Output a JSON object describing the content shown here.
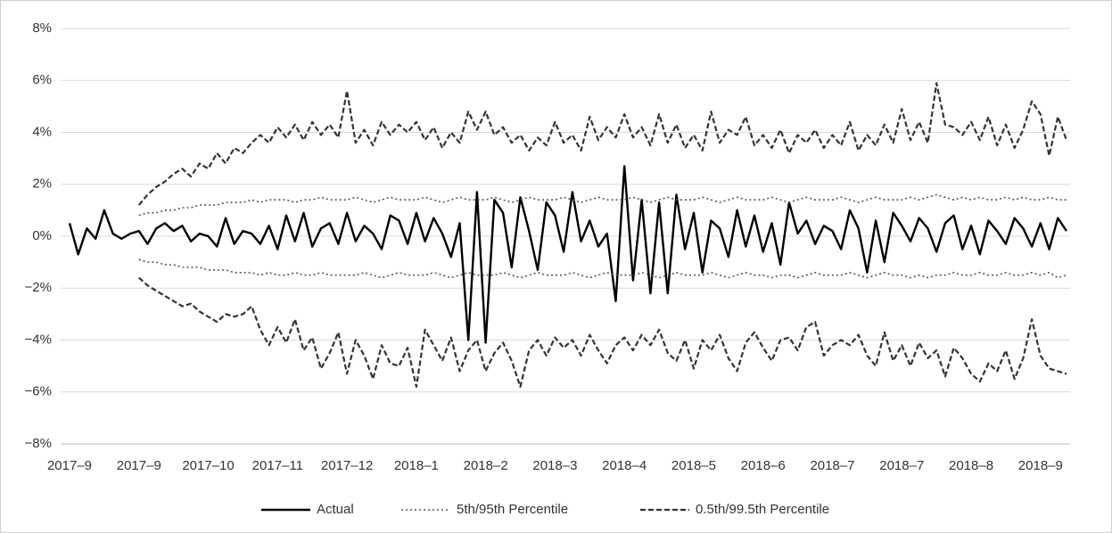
{
  "chart_data": {
    "type": "line",
    "categories": [
      "2017–9",
      null,
      null,
      null,
      null,
      null,
      null,
      null,
      "2017–9",
      null,
      null,
      null,
      null,
      null,
      null,
      null,
      "2017–10",
      null,
      null,
      null,
      null,
      null,
      null,
      null,
      "2017–11",
      null,
      null,
      null,
      null,
      null,
      null,
      null,
      "2017–12",
      null,
      null,
      null,
      null,
      null,
      null,
      null,
      "2018–1",
      null,
      null,
      null,
      null,
      null,
      null,
      null,
      "2018–2",
      null,
      null,
      null,
      null,
      null,
      null,
      null,
      "2018–3",
      null,
      null,
      null,
      null,
      null,
      null,
      null,
      "2018–4",
      null,
      null,
      null,
      null,
      null,
      null,
      null,
      "2018–5",
      null,
      null,
      null,
      null,
      null,
      null,
      null,
      "2018–6",
      null,
      null,
      null,
      null,
      null,
      null,
      null,
      "2018–7",
      null,
      null,
      null,
      null,
      null,
      null,
      null,
      "2018–7",
      null,
      null,
      null,
      null,
      null,
      null,
      null,
      "2018–8",
      null,
      null,
      null,
      null,
      null,
      null,
      null,
      "2018–9",
      null,
      null,
      null
    ],
    "series": [
      {
        "name": "Actual",
        "color": "#000000",
        "dash": "solid",
        "values": [
          0.5,
          -0.7,
          0.3,
          -0.1,
          1.0,
          0.1,
          -0.1,
          0.1,
          0.2,
          -0.3,
          0.3,
          0.5,
          0.2,
          0.4,
          -0.2,
          0.1,
          0.0,
          -0.4,
          0.7,
          -0.3,
          0.2,
          0.1,
          -0.3,
          0.4,
          -0.5,
          0.8,
          -0.2,
          0.9,
          -0.4,
          0.3,
          0.5,
          -0.3,
          0.9,
          -0.2,
          0.4,
          0.1,
          -0.5,
          0.8,
          0.6,
          -0.3,
          0.9,
          -0.2,
          0.7,
          0.1,
          -0.8,
          0.5,
          -4.0,
          1.7,
          -4.1,
          1.4,
          0.9,
          -1.2,
          1.5,
          0.2,
          -1.3,
          1.3,
          0.8,
          -0.6,
          1.7,
          -0.2,
          0.6,
          -0.4,
          0.1,
          -2.5,
          2.7,
          -1.7,
          1.4,
          -2.2,
          1.3,
          -2.2,
          1.6,
          -0.5,
          0.9,
          -1.4,
          0.6,
          0.3,
          -0.8,
          1.0,
          -0.4,
          0.8,
          -0.6,
          0.5,
          -1.1,
          1.3,
          0.1,
          0.6,
          -0.3,
          0.4,
          0.2,
          -0.5,
          1.0,
          0.3,
          -1.4,
          0.6,
          -1.0,
          0.9,
          0.4,
          -0.2,
          0.7,
          0.3,
          -0.6,
          0.5,
          0.8,
          -0.5,
          0.4,
          -0.7,
          0.6,
          0.2,
          -0.3,
          0.7,
          0.3,
          -0.4,
          0.5,
          -0.5,
          0.7,
          0.2
        ]
      },
      {
        "name": "5th/95th Percentile",
        "color": "#555555",
        "dash": "dotted",
        "upper": [
          null,
          null,
          null,
          null,
          null,
          null,
          null,
          null,
          0.8,
          0.9,
          0.9,
          1.0,
          1.0,
          1.1,
          1.1,
          1.2,
          1.2,
          1.2,
          1.3,
          1.3,
          1.3,
          1.4,
          1.3,
          1.4,
          1.4,
          1.4,
          1.3,
          1.4,
          1.4,
          1.5,
          1.4,
          1.4,
          1.4,
          1.5,
          1.4,
          1.3,
          1.4,
          1.5,
          1.4,
          1.4,
          1.4,
          1.5,
          1.4,
          1.3,
          1.4,
          1.5,
          1.4,
          1.4,
          1.4,
          1.5,
          1.4,
          1.3,
          1.4,
          1.5,
          1.4,
          1.4,
          1.4,
          1.5,
          1.4,
          1.3,
          1.4,
          1.5,
          1.4,
          1.4,
          1.4,
          1.5,
          1.4,
          1.3,
          1.4,
          1.5,
          1.4,
          1.4,
          1.4,
          1.5,
          1.4,
          1.3,
          1.4,
          1.5,
          1.4,
          1.4,
          1.4,
          1.5,
          1.4,
          1.3,
          1.4,
          1.5,
          1.4,
          1.4,
          1.4,
          1.5,
          1.4,
          1.3,
          1.4,
          1.5,
          1.4,
          1.4,
          1.4,
          1.5,
          1.4,
          1.5,
          1.6,
          1.5,
          1.4,
          1.5,
          1.4,
          1.5,
          1.4,
          1.4,
          1.5,
          1.4,
          1.5,
          1.4,
          1.4,
          1.5,
          1.4,
          1.4
        ],
        "lower": [
          null,
          null,
          null,
          null,
          null,
          null,
          null,
          null,
          -0.9,
          -1.0,
          -1.0,
          -1.1,
          -1.1,
          -1.2,
          -1.2,
          -1.2,
          -1.3,
          -1.3,
          -1.3,
          -1.4,
          -1.4,
          -1.4,
          -1.5,
          -1.4,
          -1.5,
          -1.5,
          -1.4,
          -1.5,
          -1.5,
          -1.4,
          -1.5,
          -1.5,
          -1.5,
          -1.5,
          -1.4,
          -1.5,
          -1.6,
          -1.5,
          -1.4,
          -1.5,
          -1.5,
          -1.5,
          -1.4,
          -1.5,
          -1.6,
          -1.5,
          -1.4,
          -1.5,
          -1.5,
          -1.5,
          -1.4,
          -1.5,
          -1.6,
          -1.5,
          -1.4,
          -1.5,
          -1.5,
          -1.5,
          -1.4,
          -1.5,
          -1.6,
          -1.5,
          -1.4,
          -1.5,
          -1.5,
          -1.5,
          -1.4,
          -1.5,
          -1.6,
          -1.5,
          -1.4,
          -1.5,
          -1.5,
          -1.5,
          -1.4,
          -1.5,
          -1.6,
          -1.5,
          -1.4,
          -1.5,
          -1.5,
          -1.6,
          -1.5,
          -1.5,
          -1.6,
          -1.5,
          -1.4,
          -1.5,
          -1.5,
          -1.5,
          -1.4,
          -1.5,
          -1.6,
          -1.5,
          -1.4,
          -1.5,
          -1.5,
          -1.6,
          -1.5,
          -1.6,
          -1.5,
          -1.5,
          -1.4,
          -1.5,
          -1.5,
          -1.4,
          -1.5,
          -1.5,
          -1.4,
          -1.5,
          -1.5,
          -1.4,
          -1.5,
          -1.4,
          -1.6,
          -1.5
        ]
      },
      {
        "name": "0.5th/99.5th Percentile",
        "color": "#333333",
        "dash": "dashed",
        "upper": [
          null,
          null,
          null,
          null,
          null,
          null,
          null,
          null,
          1.2,
          1.6,
          1.9,
          2.1,
          2.4,
          2.6,
          2.3,
          2.8,
          2.6,
          3.2,
          2.8,
          3.4,
          3.2,
          3.6,
          3.9,
          3.6,
          4.2,
          3.8,
          4.3,
          3.7,
          4.4,
          3.9,
          4.3,
          3.8,
          5.6,
          3.6,
          4.1,
          3.5,
          4.4,
          3.9,
          4.3,
          4.0,
          4.4,
          3.7,
          4.2,
          3.4,
          4.0,
          3.6,
          4.8,
          4.1,
          4.8,
          3.9,
          4.2,
          3.6,
          3.9,
          3.3,
          3.8,
          3.5,
          4.4,
          3.6,
          3.9,
          3.3,
          4.6,
          3.7,
          4.2,
          3.8,
          4.7,
          3.8,
          4.2,
          3.5,
          4.7,
          3.6,
          4.3,
          3.4,
          3.9,
          3.3,
          4.8,
          3.6,
          4.1,
          3.9,
          4.6,
          3.5,
          3.9,
          3.4,
          4.1,
          3.2,
          3.9,
          3.6,
          4.1,
          3.4,
          3.9,
          3.5,
          4.4,
          3.3,
          3.9,
          3.5,
          4.3,
          3.6,
          4.9,
          3.7,
          4.4,
          3.6,
          5.9,
          4.3,
          4.2,
          3.9,
          4.4,
          3.7,
          4.6,
          3.5,
          4.3,
          3.4,
          4.1,
          5.2,
          4.7,
          3.1,
          4.6,
          3.7
        ],
        "lower": [
          null,
          null,
          null,
          null,
          null,
          null,
          null,
          null,
          -1.6,
          -1.9,
          -2.1,
          -2.3,
          -2.5,
          -2.7,
          -2.6,
          -2.9,
          -3.1,
          -3.3,
          -3.0,
          -3.1,
          -3.0,
          -2.7,
          -3.6,
          -4.2,
          -3.5,
          -4.1,
          -3.2,
          -4.4,
          -3.9,
          -5.1,
          -4.5,
          -3.7,
          -5.3,
          -4.0,
          -4.6,
          -5.5,
          -4.2,
          -4.9,
          -5.0,
          -4.3,
          -5.8,
          -3.6,
          -4.2,
          -4.8,
          -3.9,
          -5.2,
          -4.4,
          -4.0,
          -5.2,
          -4.5,
          -4.1,
          -4.8,
          -5.8,
          -4.4,
          -4.0,
          -4.6,
          -3.9,
          -4.3,
          -4.0,
          -4.6,
          -3.8,
          -4.4,
          -4.9,
          -4.2,
          -3.9,
          -4.4,
          -3.8,
          -4.2,
          -3.6,
          -4.5,
          -4.8,
          -4.0,
          -5.1,
          -4.0,
          -4.4,
          -3.8,
          -4.7,
          -5.2,
          -4.1,
          -3.7,
          -4.3,
          -4.8,
          -4.0,
          -3.9,
          -4.4,
          -3.5,
          -3.3,
          -4.6,
          -4.2,
          -4.0,
          -4.2,
          -3.8,
          -4.6,
          -5.0,
          -3.7,
          -4.8,
          -4.2,
          -5.0,
          -4.1,
          -4.7,
          -4.4,
          -5.4,
          -4.3,
          -4.7,
          -5.3,
          -5.6,
          -4.9,
          -5.2,
          -4.4,
          -5.5,
          -4.7,
          -3.2,
          -4.6,
          -5.1,
          -5.2,
          -5.3
        ]
      }
    ],
    "ylim": [
      -8,
      8
    ],
    "yticks": [
      {
        "value": -8,
        "label": "−8%"
      },
      {
        "value": -6,
        "label": "−6%"
      },
      {
        "value": -4,
        "label": "−4%"
      },
      {
        "value": -2,
        "label": "−2%"
      },
      {
        "value": 0,
        "label": "0%"
      },
      {
        "value": 2,
        "label": "2%"
      },
      {
        "value": 4,
        "label": "4%"
      },
      {
        "value": 6,
        "label": "6%"
      },
      {
        "value": 8,
        "label": "8%"
      }
    ],
    "grid": true,
    "legend": "bottom"
  }
}
